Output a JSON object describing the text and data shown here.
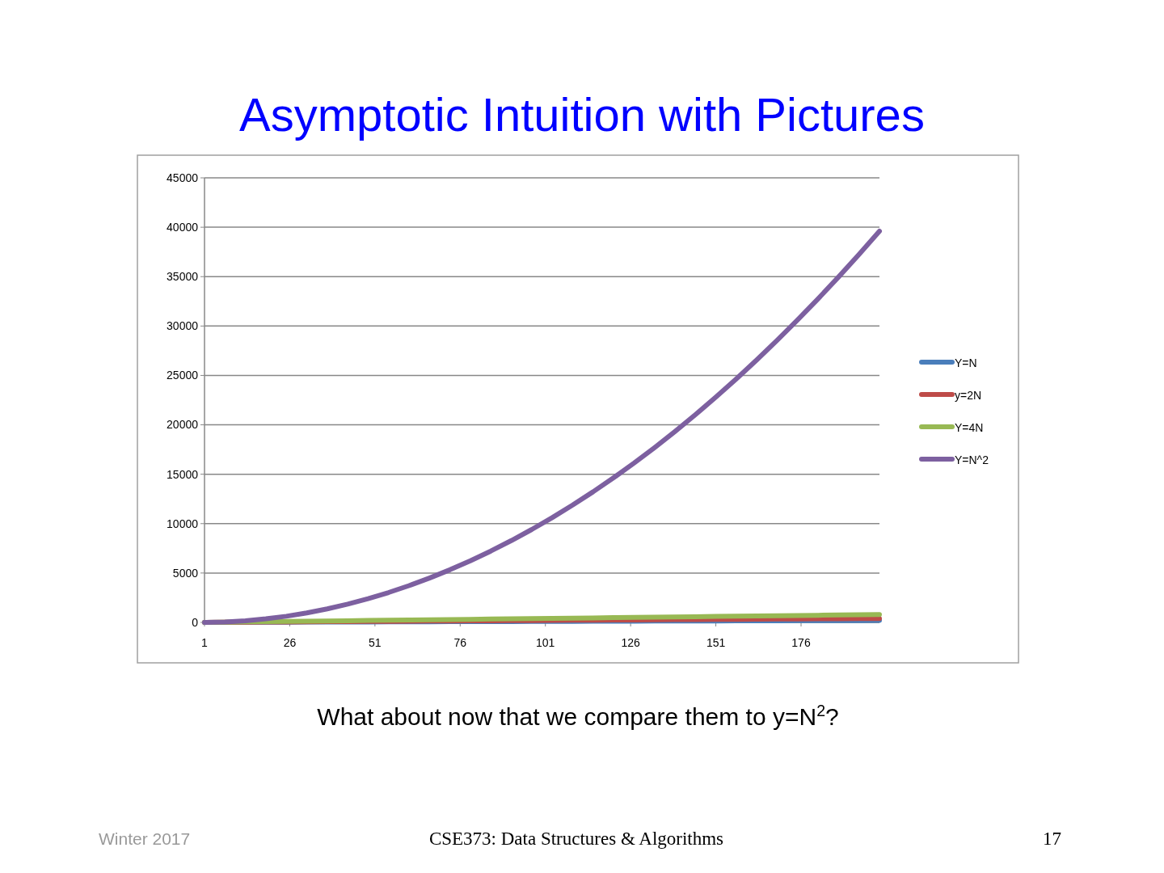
{
  "chart_data": {
    "type": "line",
    "title": "Asymptotic Intuition with Pictures",
    "x": [
      1,
      7,
      13,
      19,
      25,
      31,
      37,
      43,
      49,
      55,
      61,
      67,
      73,
      79,
      85,
      91,
      97,
      103,
      109,
      115,
      121,
      127,
      133,
      139,
      145,
      151,
      157,
      163,
      169,
      175,
      181,
      187,
      193,
      199
    ],
    "xlim": [
      1,
      199
    ],
    "xticks": [
      1,
      26,
      51,
      76,
      101,
      126,
      151,
      176
    ],
    "ylim": [
      0,
      45000
    ],
    "yticks": [
      0,
      5000,
      10000,
      15000,
      20000,
      25000,
      30000,
      35000,
      40000,
      45000
    ],
    "grid": "y",
    "legend": "right",
    "marker": "none",
    "line_style": "solid",
    "series": [
      {
        "name": "Y=N",
        "color": "#4a7ebb",
        "values": [
          1,
          7,
          13,
          19,
          25,
          31,
          37,
          43,
          49,
          55,
          61,
          67,
          73,
          79,
          85,
          91,
          97,
          103,
          109,
          115,
          121,
          127,
          133,
          139,
          145,
          151,
          157,
          163,
          169,
          175,
          181,
          187,
          193,
          199
        ]
      },
      {
        "name": "y=2N",
        "color": "#be4b48",
        "values": [
          2,
          14,
          26,
          38,
          50,
          62,
          74,
          86,
          98,
          110,
          122,
          134,
          146,
          158,
          170,
          182,
          194,
          206,
          218,
          230,
          242,
          254,
          266,
          278,
          290,
          302,
          314,
          326,
          338,
          350,
          362,
          374,
          386,
          398
        ]
      },
      {
        "name": "Y=4N",
        "color": "#98b954",
        "values": [
          4,
          28,
          52,
          76,
          100,
          124,
          148,
          172,
          196,
          220,
          244,
          268,
          292,
          316,
          340,
          364,
          388,
          412,
          436,
          460,
          484,
          508,
          532,
          556,
          580,
          604,
          628,
          652,
          676,
          700,
          724,
          748,
          772,
          796
        ]
      },
      {
        "name": "Y=N^2",
        "color": "#7d60a0",
        "values": [
          1,
          49,
          169,
          361,
          625,
          961,
          1369,
          1849,
          2401,
          3025,
          3721,
          4489,
          5329,
          6241,
          7225,
          8281,
          9409,
          10609,
          11881,
          13225,
          14641,
          16129,
          17689,
          19321,
          21025,
          22801,
          24649,
          26569,
          28561,
          30625,
          32761,
          34969,
          37249,
          39601
        ]
      }
    ],
    "annotations": [
      "What about now that we compare them to y=N$^{2}$?",
      "Winter 2017",
      "CSE373: Data Structures & Algorithms",
      "17"
    ]
  }
}
